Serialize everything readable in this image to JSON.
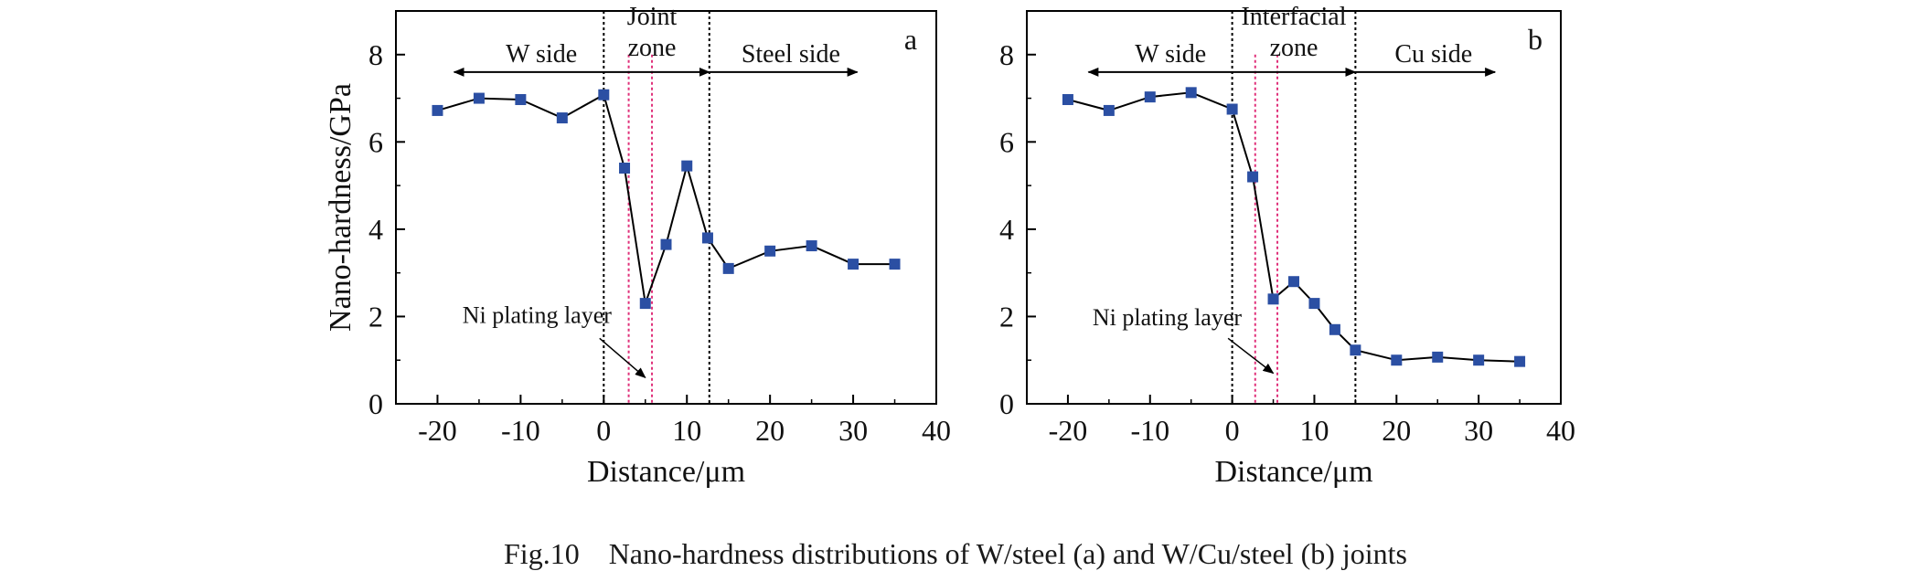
{
  "caption": "Fig.10    Nano-hardness distributions of W/steel (a) and W/Cu/steel (b) joints",
  "colors": {
    "marker": "#2b4fa3",
    "line": "#000000",
    "boundary": "#000000",
    "ni_layer": "#e0307a"
  },
  "chart_data": [
    {
      "type": "line",
      "panel_label": "a",
      "xlabel": "Distance/μm",
      "ylabel": "Nano-hardness/GPa",
      "xlim": [
        -25,
        40
      ],
      "ylim": [
        0,
        9
      ],
      "xticks": [
        -20,
        -10,
        0,
        10,
        20,
        30,
        40
      ],
      "yticks": [
        0,
        2,
        4,
        6,
        8
      ],
      "series": [
        {
          "x": [
            -20,
            -15,
            -10,
            -5,
            0,
            2.5,
            5,
            7.5,
            10,
            12.5,
            15,
            20,
            25,
            30,
            35
          ],
          "y": [
            6.72,
            7.0,
            6.97,
            6.55,
            7.08,
            5.4,
            2.3,
            3.65,
            5.45,
            3.8,
            3.1,
            3.5,
            3.62,
            3.2,
            3.2
          ]
        }
      ],
      "boundaries": [
        0,
        12.7
      ],
      "ni_layer_lines": [
        3.0,
        5.8
      ],
      "regions": [
        {
          "label": "W side",
          "lines": [
            "W side"
          ],
          "label_x": -7.5,
          "label_y": 8.0,
          "arrow_from": 0,
          "arrow_to": -18
        },
        {
          "label": "Joint zone",
          "lines": [
            "Joint",
            "zone"
          ],
          "label_x": 5.8,
          "label_y": 8.6,
          "arrow_from": 0,
          "arrow_to": 12.7
        },
        {
          "label": "Steel side",
          "lines": [
            "Steel side"
          ],
          "label_x": 22.5,
          "label_y": 8.0,
          "arrow_from": 12.7,
          "arrow_to": 30.5
        }
      ],
      "annotation": {
        "text": "Ni plating layer",
        "text_x": -17,
        "text_y": 1.85,
        "arrow_from": [
          -0.5,
          1.5
        ],
        "arrow_to": [
          5,
          0.6
        ]
      }
    },
    {
      "type": "line",
      "panel_label": "b",
      "xlabel": "Distance/μm",
      "ylabel": "",
      "xlim": [
        -25,
        40
      ],
      "ylim": [
        0,
        9
      ],
      "xticks": [
        -20,
        -10,
        0,
        10,
        20,
        30,
        40
      ],
      "yticks": [
        0,
        2,
        4,
        6,
        8
      ],
      "series": [
        {
          "x": [
            -20,
            -15,
            -10,
            -5,
            0,
            2.5,
            5,
            7.5,
            10,
            12.5,
            15,
            20,
            25,
            30,
            35
          ],
          "y": [
            6.97,
            6.72,
            7.03,
            7.13,
            6.75,
            5.2,
            2.4,
            2.8,
            2.3,
            1.7,
            1.23,
            1.0,
            1.07,
            1.0,
            0.97
          ]
        }
      ],
      "boundaries": [
        0,
        15
      ],
      "ni_layer_lines": [
        2.8,
        5.5
      ],
      "regions": [
        {
          "label": "W side",
          "lines": [
            "W side"
          ],
          "label_x": -7.5,
          "label_y": 8.0,
          "arrow_from": 0,
          "arrow_to": -17.5
        },
        {
          "label": "Interfacial zone",
          "lines": [
            "Interfacial",
            "zone"
          ],
          "label_x": 7.5,
          "label_y": 8.6,
          "arrow_from": 0,
          "arrow_to": 15
        },
        {
          "label": "Cu side",
          "lines": [
            "Cu side"
          ],
          "label_x": 24.5,
          "label_y": 8.0,
          "arrow_from": 15,
          "arrow_to": 32
        }
      ],
      "annotation": {
        "text": "Ni plating layer",
        "text_x": -17,
        "text_y": 1.8,
        "arrow_from": [
          -0.5,
          1.5
        ],
        "arrow_to": [
          5,
          0.7
        ]
      }
    }
  ]
}
